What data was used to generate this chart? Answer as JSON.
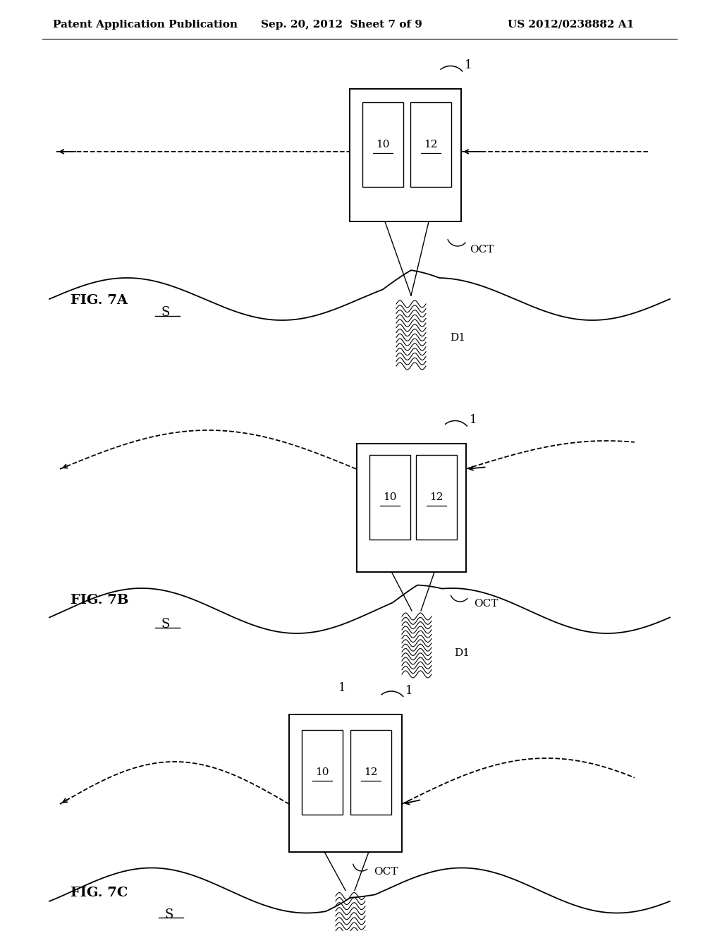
{
  "header_left": "Patent Application Publication",
  "header_mid": "Sep. 20, 2012  Sheet 7 of 9",
  "header_right": "US 2012/0238882 A1",
  "fig_labels": [
    "FIG. 7A",
    "FIG. 7B",
    "FIG. 7C"
  ],
  "background_color": "#ffffff",
  "line_color": "#000000"
}
